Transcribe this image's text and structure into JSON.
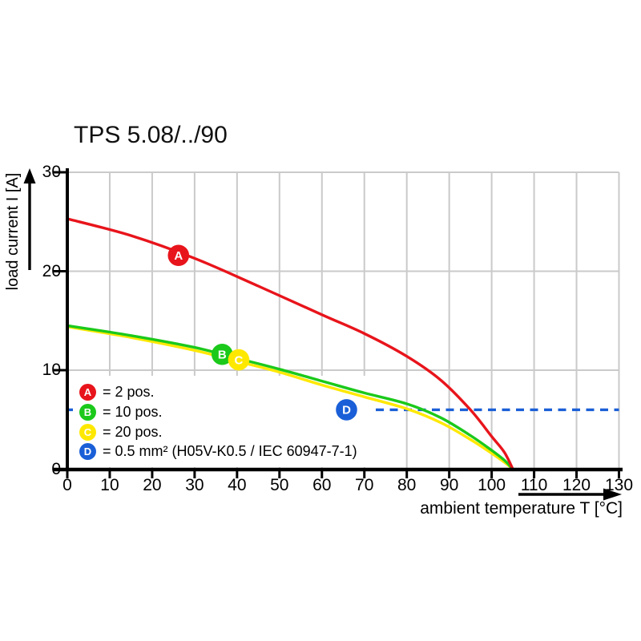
{
  "chart_data": {
    "type": "line",
    "title": "TPS 5.08/../90",
    "xlabel": "ambient temperature T [°C]",
    "ylabel": "load current I [A]",
    "xlim": [
      0,
      130
    ],
    "ylim": [
      0,
      30
    ],
    "x_ticks": [
      0,
      10,
      20,
      30,
      40,
      50,
      60,
      70,
      80,
      90,
      100,
      110,
      120,
      130
    ],
    "y_ticks": [
      0,
      10,
      20,
      30
    ],
    "grid": true,
    "grid_color": "#cacaca",
    "axis_color": "#000000",
    "legend_position": "lower-left-inside",
    "series": [
      {
        "key": "A",
        "name": "2 pos.",
        "color": "#e8141b",
        "style": "solid",
        "marker": {
          "x": 26.2,
          "y": 21.6
        },
        "points": [
          [
            0,
            25.3
          ],
          [
            15,
            23.6
          ],
          [
            30,
            21.3
          ],
          [
            45,
            18.5
          ],
          [
            60,
            15.6
          ],
          [
            70,
            13.7
          ],
          [
            80,
            11.4
          ],
          [
            88,
            9.0
          ],
          [
            95,
            6.0
          ],
          [
            100,
            3.3
          ],
          [
            103,
            1.7
          ],
          [
            105,
            0
          ]
        ]
      },
      {
        "key": "B",
        "name": "10 pos.",
        "color": "#1bc91b",
        "style": "solid",
        "marker": {
          "x": 36.5,
          "y": 11.6
        },
        "points": [
          [
            0,
            14.5
          ],
          [
            15,
            13.5
          ],
          [
            30,
            12.3
          ],
          [
            40,
            11.2
          ],
          [
            50,
            10.1
          ],
          [
            60,
            8.9
          ],
          [
            70,
            7.7
          ],
          [
            80,
            6.6
          ],
          [
            88,
            5.2
          ],
          [
            95,
            3.4
          ],
          [
            100,
            1.9
          ],
          [
            103,
            0.9
          ],
          [
            105,
            0
          ]
        ]
      },
      {
        "key": "C",
        "name": "20 pos.",
        "color": "#ffe800",
        "style": "solid",
        "marker": {
          "x": 40.4,
          "y": 11.05
        },
        "points": [
          [
            0,
            14.4
          ],
          [
            15,
            13.3
          ],
          [
            30,
            12.0
          ],
          [
            40,
            10.9
          ],
          [
            50,
            9.8
          ],
          [
            60,
            8.5
          ],
          [
            70,
            7.3
          ],
          [
            80,
            6.1
          ],
          [
            88,
            4.7
          ],
          [
            95,
            3.0
          ],
          [
            100,
            1.6
          ],
          [
            103,
            0.7
          ],
          [
            105,
            0
          ]
        ]
      },
      {
        "key": "D",
        "name": "0.5 mm² (H05V-K0.5 / IEC 60947-7-1)",
        "color": "#1a5fd7",
        "style": "dashed",
        "limit_value": 6,
        "marker": {
          "x": 65.8,
          "y": 6.0
        },
        "points": [
          [
            0,
            6
          ],
          [
            130,
            6
          ]
        ]
      }
    ],
    "legend": [
      {
        "key": "A",
        "color": "#e8141b",
        "label": "= 2 pos."
      },
      {
        "key": "B",
        "color": "#1bc91b",
        "label": "= 10 pos."
      },
      {
        "key": "C",
        "color": "#ffe800",
        "label": "= 20 pos."
      },
      {
        "key": "D",
        "color": "#1a5fd7",
        "label": "= 0.5 mm² (H05V-K0.5 / IEC 60947-7-1)"
      }
    ]
  }
}
